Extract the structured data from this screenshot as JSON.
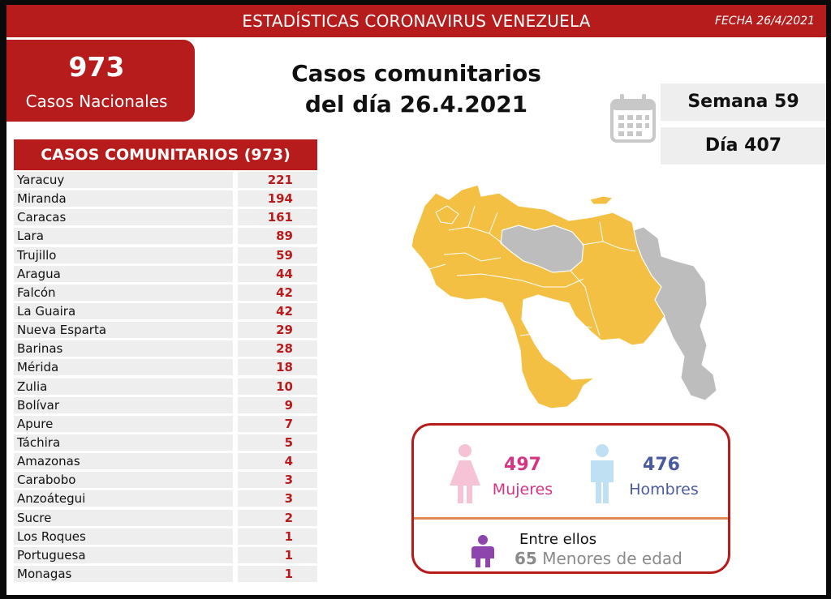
{
  "header": {
    "title": "ESTADÍSTICAS CORONAVIRUS VENEZUELA",
    "date": "FECHA 26/4/2021"
  },
  "national": {
    "count": "973",
    "label": "Casos Nacionales"
  },
  "headline": {
    "line1": "Casos comunitarios",
    "line2": "del día 26.4.2021"
  },
  "week": "Semana 59",
  "day": "Día 407",
  "table": {
    "header": "CASOS COMUNITARIOS (973)",
    "rows": [
      {
        "name": "Yaracuy",
        "value": "221"
      },
      {
        "name": "Miranda",
        "value": "194"
      },
      {
        "name": "Caracas",
        "value": "161"
      },
      {
        "name": "Lara",
        "value": "89"
      },
      {
        "name": "Trujillo",
        "value": "59"
      },
      {
        "name": "Aragua",
        "value": "44"
      },
      {
        "name": "Falcón",
        "value": "42"
      },
      {
        "name": "La Guaira",
        "value": "42"
      },
      {
        "name": "Nueva Esparta",
        "value": "29"
      },
      {
        "name": "Barinas",
        "value": "28"
      },
      {
        "name": "Mérida",
        "value": "18"
      },
      {
        "name": "Zulia",
        "value": "10"
      },
      {
        "name": "Bolívar",
        "value": "9"
      },
      {
        "name": "Apure",
        "value": "7"
      },
      {
        "name": "Táchira",
        "value": "5"
      },
      {
        "name": "Amazonas",
        "value": "4"
      },
      {
        "name": "Carabobo",
        "value": "3"
      },
      {
        "name": "Anzoátegui",
        "value": "3"
      },
      {
        "name": "Sucre",
        "value": "2"
      },
      {
        "name": "Los Roques",
        "value": "1"
      },
      {
        "name": "Portuguesa",
        "value": "1"
      },
      {
        "name": "Monagas",
        "value": "1"
      }
    ]
  },
  "gender": {
    "female_count": "497",
    "female_label": "Mujeres",
    "male_count": "476",
    "male_label": "Hombres",
    "minors_intro": "Entre ellos",
    "minors_count": "65",
    "minors_label": "Menores de edad"
  },
  "colors": {
    "brand_red": "#b71c1c",
    "map_yellow": "#f4c043",
    "map_gray": "#bdbdbd",
    "female_pink": "#d63384",
    "male_blue": "#4a5aa0",
    "child_purple": "#8e44ad"
  },
  "icons": [
    "calendar-icon",
    "female-icon",
    "male-icon",
    "child-icon"
  ]
}
